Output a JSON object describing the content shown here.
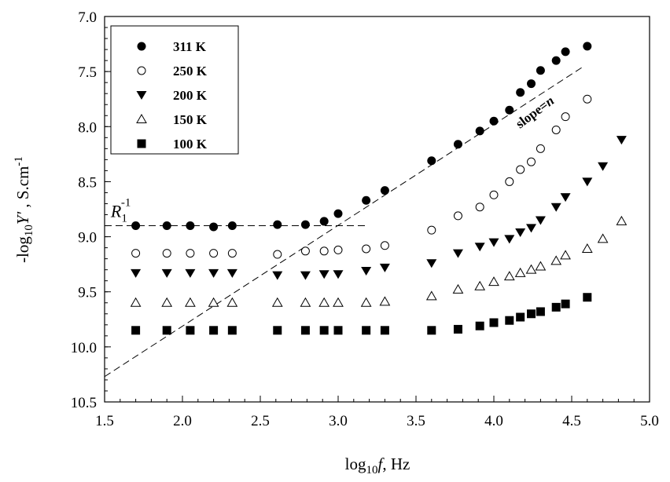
{
  "chart_data": {
    "type": "scatter",
    "xlabel": {
      "prefix": "log",
      "sub": "10",
      "var": "f",
      "suffix": ", Hz"
    },
    "ylabel": {
      "prefix": "-log",
      "sub": "10",
      "var": "Y'",
      "suffix": " , S.cm",
      "sup": "-1"
    },
    "xlim": [
      1.5,
      5.0
    ],
    "ylim": [
      10.5,
      7.0
    ],
    "y_inverted": true,
    "x_ticks": [
      "1.5",
      "2.0",
      "2.5",
      "3.0",
      "3.5",
      "4.0",
      "4.5",
      "5.0"
    ],
    "y_ticks": [
      "7.0",
      "7.5",
      "8.0",
      "8.5",
      "9.0",
      "9.5",
      "10.0",
      "10.5"
    ],
    "legend_position": "top-left",
    "series": [
      {
        "name": "311 K",
        "marker": "filled-circle",
        "x": [
          1.7,
          1.9,
          2.05,
          2.2,
          2.32,
          2.61,
          2.79,
          2.91,
          3.0,
          3.18,
          3.3,
          3.6,
          3.77,
          3.91,
          4.0,
          4.1,
          4.17,
          4.24,
          4.3,
          4.4,
          4.46,
          4.6
        ],
        "y": [
          8.9,
          8.9,
          8.9,
          8.91,
          8.9,
          8.89,
          8.89,
          8.86,
          8.79,
          8.67,
          8.58,
          8.31,
          8.16,
          8.04,
          7.95,
          7.85,
          7.69,
          7.61,
          7.49,
          7.4,
          7.32,
          7.27
        ]
      },
      {
        "name": "250 K",
        "marker": "open-circle",
        "x": [
          1.7,
          1.9,
          2.05,
          2.2,
          2.32,
          2.61,
          2.79,
          2.91,
          3.0,
          3.18,
          3.3,
          3.6,
          3.77,
          3.91,
          4.0,
          4.1,
          4.17,
          4.24,
          4.3,
          4.4,
          4.46,
          4.6
        ],
        "y": [
          9.15,
          9.15,
          9.15,
          9.15,
          9.15,
          9.16,
          9.13,
          9.13,
          9.12,
          9.11,
          9.08,
          8.94,
          8.81,
          8.73,
          8.62,
          8.5,
          8.39,
          8.32,
          8.2,
          8.03,
          7.91,
          7.75
        ]
      },
      {
        "name": "200 K",
        "marker": "filled-triangle-down",
        "x": [
          1.7,
          1.9,
          2.05,
          2.2,
          2.32,
          2.61,
          2.79,
          2.91,
          3.0,
          3.18,
          3.3,
          3.6,
          3.77,
          3.91,
          4.0,
          4.1,
          4.17,
          4.24,
          4.3,
          4.4,
          4.46,
          4.6,
          4.7,
          4.82
        ],
        "y": [
          9.33,
          9.33,
          9.33,
          9.33,
          9.33,
          9.35,
          9.35,
          9.34,
          9.34,
          9.31,
          9.28,
          9.24,
          9.15,
          9.09,
          9.05,
          9.02,
          8.96,
          8.92,
          8.85,
          8.73,
          8.64,
          8.5,
          8.36,
          8.12
        ]
      },
      {
        "name": "150 K",
        "marker": "open-triangle-up",
        "x": [
          1.7,
          1.9,
          2.05,
          2.2,
          2.32,
          2.61,
          2.79,
          2.91,
          3.0,
          3.18,
          3.3,
          3.6,
          3.77,
          3.91,
          4.0,
          4.1,
          4.17,
          4.24,
          4.3,
          4.4,
          4.46,
          4.6,
          4.7,
          4.82
        ],
        "y": [
          9.6,
          9.6,
          9.6,
          9.6,
          9.6,
          9.6,
          9.6,
          9.6,
          9.6,
          9.6,
          9.59,
          9.54,
          9.48,
          9.45,
          9.41,
          9.36,
          9.33,
          9.3,
          9.27,
          9.22,
          9.17,
          9.11,
          9.02,
          8.86
        ]
      },
      {
        "name": "100 K",
        "marker": "filled-square",
        "x": [
          1.7,
          1.9,
          2.05,
          2.2,
          2.32,
          2.61,
          2.79,
          2.91,
          3.0,
          3.18,
          3.3,
          3.6,
          3.77,
          3.91,
          4.0,
          4.1,
          4.17,
          4.24,
          4.3,
          4.4,
          4.46,
          4.6
        ],
        "y": [
          9.85,
          9.85,
          9.85,
          9.85,
          9.85,
          9.85,
          9.85,
          9.85,
          9.85,
          9.85,
          9.85,
          9.85,
          9.84,
          9.81,
          9.78,
          9.76,
          9.73,
          9.7,
          9.68,
          9.64,
          9.61,
          9.55
        ]
      }
    ],
    "lines": [
      {
        "style": "dashed",
        "x": [
          1.5,
          3.18
        ],
        "y": [
          8.9,
          8.9
        ]
      },
      {
        "style": "dashed",
        "x": [
          1.5,
          4.58
        ],
        "y": [
          10.27,
          7.45
        ]
      }
    ],
    "annotations": [
      {
        "text": "slope=",
        "italic_suffix": "n",
        "x": 4.28,
        "y": 7.9,
        "rotation_deg": -37
      },
      {
        "text": "R",
        "sub": "1",
        "sup": "-1",
        "x": 1.54,
        "y": 8.82
      }
    ]
  }
}
